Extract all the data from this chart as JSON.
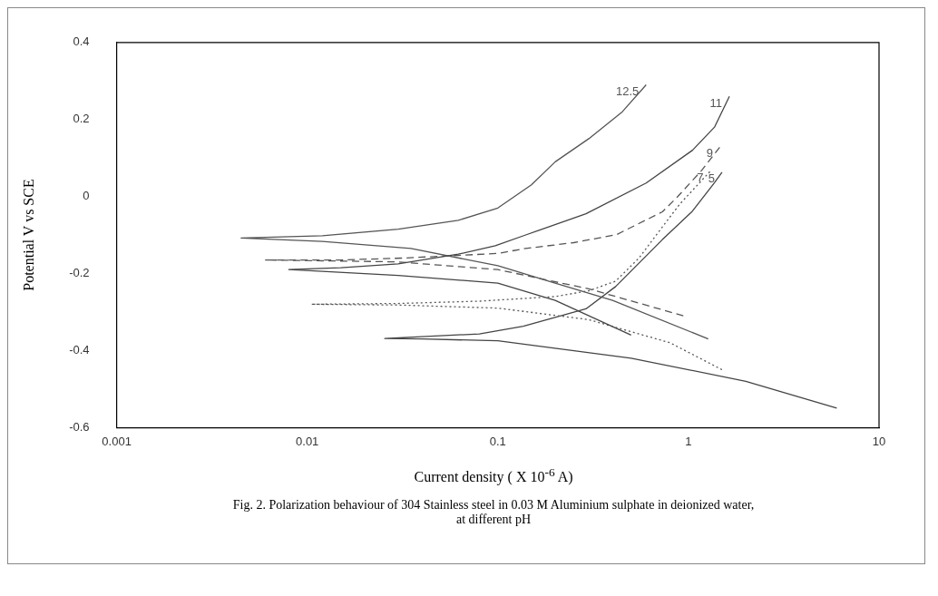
{
  "chart_data": {
    "type": "line",
    "xlabel": "Current density ( X 10$^{-6}$ A)",
    "ylabel": "Potential V vs SCE",
    "annotations": [
      "Fig. 2. Polarization behaviour of 304 Stainless steel in 0.03 M Aluminium sulphate in deionized water, at different pH"
    ],
    "log": "x",
    "grid": false,
    "legend": false,
    "marker": "none",
    "xlim": [
      0.001,
      10
    ],
    "xticks": [
      0.001,
      0.01,
      0.1,
      1,
      10
    ],
    "ylim": [
      -0.6,
      0.4
    ],
    "yticks": [
      -0.6,
      -0.4,
      -0.2,
      0,
      0.2,
      0.4
    ],
    "series": [
      {
        "name": "12.5",
        "color": "#555555",
        "line_style": "solid",
        "x": [
          1.27,
          0.4,
          0.2,
          0.1,
          0.035,
          0.012,
          0.0045,
          0.012,
          0.03,
          0.062,
          0.1,
          0.15,
          0.2,
          0.3,
          0.45,
          0.6
        ],
        "values": [
          -0.37,
          -0.27,
          -0.225,
          -0.18,
          -0.135,
          -0.117,
          -0.108,
          -0.102,
          -0.085,
          -0.062,
          -0.03,
          0.03,
          0.09,
          0.15,
          0.22,
          0.29
        ]
      },
      {
        "name": "11",
        "color": "#444444",
        "line_style": "solid",
        "x": [
          0.5,
          0.2,
          0.1,
          0.03,
          0.008,
          0.015,
          0.03,
          0.062,
          0.097,
          0.14,
          0.29,
          0.6,
          1.05,
          1.37,
          1.64
        ],
        "values": [
          -0.36,
          -0.27,
          -0.225,
          -0.205,
          -0.19,
          -0.185,
          -0.175,
          -0.15,
          -0.128,
          -0.1,
          -0.045,
          0.035,
          0.12,
          0.18,
          0.26
        ]
      },
      {
        "name": "9",
        "color": "#555555",
        "line_style": "dashed",
        "x": [
          0.94,
          0.3,
          0.1,
          0.03,
          0.006,
          0.015,
          0.032,
          0.1,
          0.14,
          0.25,
          0.42,
          0.73,
          0.88,
          1.17,
          1.47
        ],
        "values": [
          -0.31,
          -0.24,
          -0.19,
          -0.17,
          -0.165,
          -0.165,
          -0.16,
          -0.148,
          -0.135,
          -0.12,
          -0.099,
          -0.04,
          0,
          0.067,
          0.13
        ]
      },
      {
        "name": "7",
        "color": "#555555",
        "line_style": "dotted",
        "x": [
          1.5,
          0.8,
          0.3,
          0.1,
          0.03,
          0.0105,
          0.03,
          0.08,
          0.2,
          0.3,
          0.415,
          0.55,
          0.65,
          0.9,
          1.31
        ],
        "values": [
          -0.45,
          -0.38,
          -0.32,
          -0.29,
          -0.282,
          -0.28,
          -0.278,
          -0.272,
          -0.26,
          -0.245,
          -0.22,
          -0.16,
          -0.112,
          -0.02,
          0.067
        ]
      },
      {
        "name": "5",
        "color": "#444444",
        "line_style": "solid",
        "x": [
          6,
          2,
          0.5,
          0.1,
          0.04,
          0.0255,
          0.08,
          0.136,
          0.29,
          0.415,
          0.73,
          1.05,
          1.37,
          1.5
        ],
        "values": [
          -0.55,
          -0.48,
          -0.42,
          -0.375,
          -0.37,
          -0.369,
          -0.357,
          -0.337,
          -0.292,
          -0.234,
          -0.112,
          -0.038,
          0.036,
          0.063
        ]
      }
    ]
  }
}
